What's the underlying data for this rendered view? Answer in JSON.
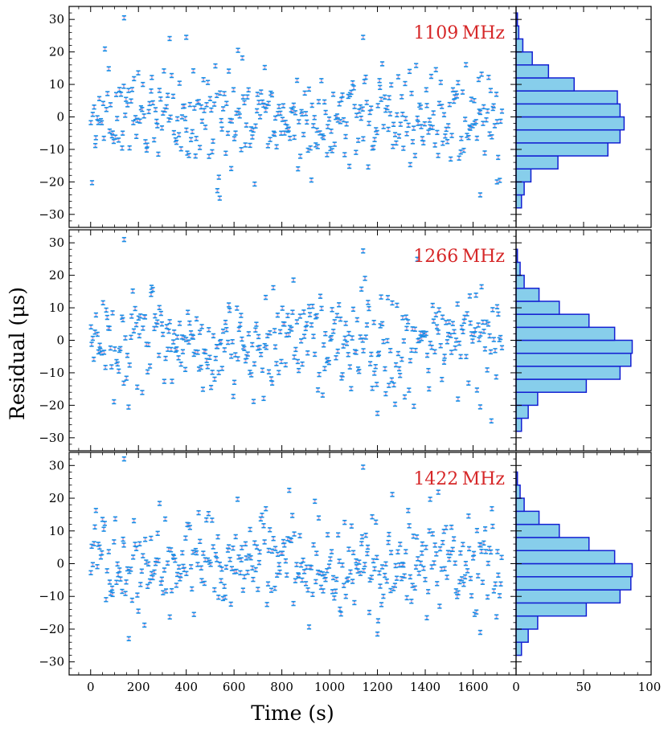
{
  "chart_data": {
    "type": "scatter",
    "ylabel": "Residual (μs)",
    "xlabel": "Time (s)",
    "xlim": [
      -90,
      1780
    ],
    "ylim": [
      -34,
      34
    ],
    "x_ticks": [
      "0",
      "200",
      "400",
      "600",
      "800",
      "1000",
      "1200",
      "1400",
      "1600"
    ],
    "y_ticks": [
      "−30",
      "−20",
      "−10",
      "0",
      "10",
      "20",
      "30"
    ],
    "hist_xlim": [
      0,
      100
    ],
    "hist_ticks": [
      "0",
      "50",
      "100"
    ],
    "hist_bin_edges": [
      -32,
      -28,
      -24,
      -20,
      -16,
      -12,
      -8,
      -4,
      0,
      4,
      8,
      12,
      16,
      20,
      24,
      28,
      32
    ],
    "colors": {
      "marker": "#1e8fe6",
      "center": "#f4a6c8",
      "hist_fill": "#87ceeb",
      "hist_edge": "#1420d2",
      "freq_label": "#d62728"
    },
    "panels": [
      {
        "label": "1109 MHz",
        "hist_counts": [
          0,
          4,
          6,
          11,
          31,
          68,
          77,
          80,
          77,
          75,
          43,
          24,
          12,
          5,
          2,
          1
        ],
        "notable_points": [
          {
            "x": 140,
            "y": 30.5
          },
          {
            "x": 400,
            "y": 24.5
          },
          {
            "x": 1140,
            "y": 24.5
          },
          {
            "x": 540,
            "y": -25
          },
          {
            "x": 1700,
            "y": -20
          },
          {
            "x": 1630,
            "y": -24
          }
        ]
      },
      {
        "label": "1266 MHz",
        "hist_counts": [
          0,
          4,
          9,
          16,
          52,
          77,
          85,
          86,
          73,
          54,
          32,
          17,
          6,
          3,
          1,
          0
        ],
        "notable_points": [
          {
            "x": 140,
            "y": 31
          },
          {
            "x": 1140,
            "y": 27.5
          },
          {
            "x": 1200,
            "y": -22.5
          },
          {
            "x": 1630,
            "y": -20.5
          }
        ]
      },
      {
        "label": "1422 MHz",
        "hist_counts": [
          0,
          4,
          9,
          16,
          52,
          77,
          85,
          86,
          73,
          54,
          32,
          17,
          6,
          3,
          1,
          0
        ],
        "notable_points": [
          {
            "x": 140,
            "y": 32
          },
          {
            "x": 1140,
            "y": 29.5
          },
          {
            "x": 1200,
            "y": -21.5
          },
          {
            "x": 1630,
            "y": -21
          }
        ]
      }
    ],
    "num_points": 370,
    "time_span": [
      0,
      1720
    ],
    "scatter_sigma": 8
  }
}
